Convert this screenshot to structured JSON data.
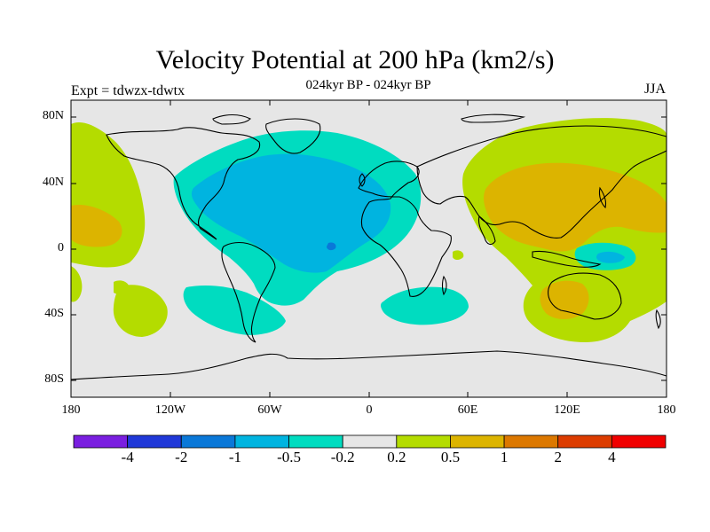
{
  "title": "Velocity Potential at 200 hPa (km2/s)",
  "subtitle": "024kyr BP - 024kyr BP",
  "left_label": "Expt = tdwzx-tdwtx",
  "right_label": "JJA",
  "lat_labels": [
    "80N",
    "40N",
    "0",
    "40S",
    "80S"
  ],
  "lon_labels": [
    "180",
    "120W",
    "60W",
    "0",
    "60E",
    "120E",
    "180"
  ],
  "colorbar": {
    "colors": [
      "#7a1fe0",
      "#2038d8",
      "#0a78d8",
      "#00b4e0",
      "#00dcc0",
      "#e6e6e6",
      "#b4dc00",
      "#dcb400",
      "#dc7800",
      "#dc3c00",
      "#f00000"
    ],
    "labels": [
      "-4",
      "-2",
      "-1",
      "-0.5",
      "-0.2",
      "0.2",
      "0.5",
      "1",
      "2",
      "4"
    ]
  },
  "colors": {
    "background": "#e6e6e6",
    "neg_weak": "#00dcc0",
    "neg_mid": "#00b4e0",
    "neg_strong": "#0a78d8",
    "pos_weak": "#b4dc00",
    "pos_mid": "#dcb400"
  }
}
